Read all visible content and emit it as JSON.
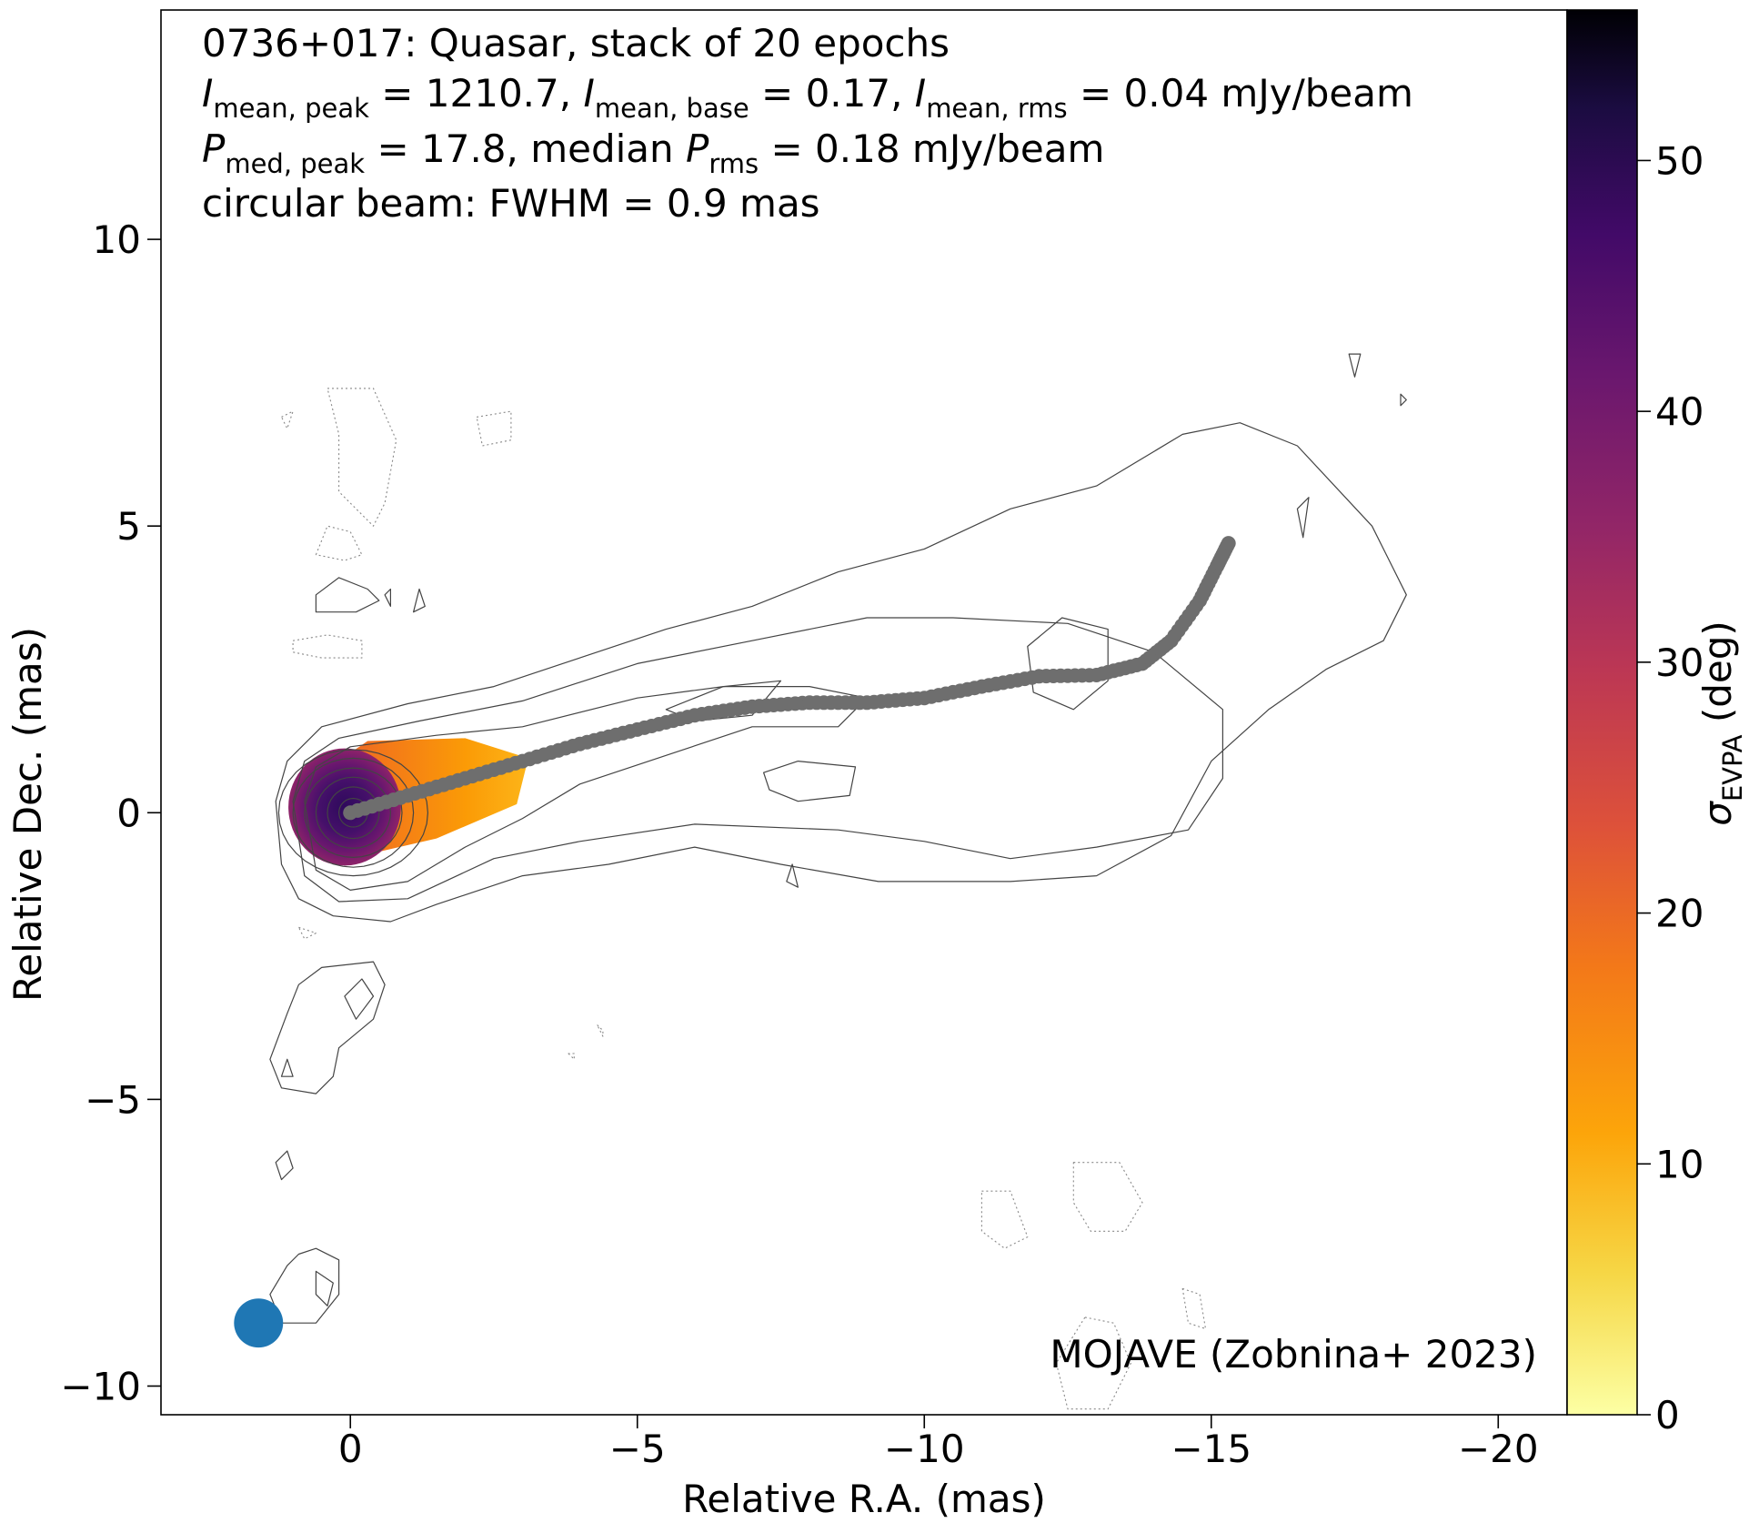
{
  "chart_data": {
    "type": "scatter",
    "title_lines": [
      "0736+017: Quasar, stack of 20 epochs",
      "circular beam: FWHM = 0.9 mas"
    ],
    "stats": {
      "i_mean_peak": "1210.7",
      "i_mean_base": "0.17",
      "i_mean_rms": "0.04",
      "p_med_peak": "17.8",
      "median_p_rms": "0.18",
      "unit": "mJy/beam",
      "sub_mean_peak": "mean, peak",
      "sub_mean_base": "mean, base",
      "sub_mean_rms": "mean, rms",
      "sub_med_peak": "med, peak",
      "sub_rms": "rms",
      "text_median": "median",
      "symbol_I": "I",
      "symbol_P": "P"
    },
    "xlabel": "Relative R.A. (mas)",
    "ylabel": "Relative Dec. (mas)",
    "xlim": [
      3.3,
      -21.2
    ],
    "ylim": [
      -10.5,
      14.0
    ],
    "xticks": [
      0,
      -5,
      -10,
      -15,
      -20
    ],
    "yticks": [
      -10,
      -5,
      0,
      5,
      10
    ],
    "xtick_labels": [
      "0",
      "−5",
      "−10",
      "−15",
      "−20"
    ],
    "ytick_labels": [
      "−10",
      "−5",
      "0",
      "5",
      "10"
    ],
    "colorbar": {
      "label_symbol": "σ",
      "label_sub": "EVPA",
      "label_unit": "(deg)",
      "range": [
        0,
        56
      ],
      "ticks": [
        0,
        10,
        20,
        30,
        40,
        50
      ],
      "tick_labels": [
        "0",
        "10",
        "20",
        "30",
        "40",
        "50"
      ],
      "colormap": "inferno_r"
    },
    "ridge_line": {
      "color": "#6e6e6e",
      "points": [
        [
          0.0,
          0.0
        ],
        [
          -1.0,
          0.3
        ],
        [
          -2.0,
          0.6
        ],
        [
          -3.0,
          0.9
        ],
        [
          -4.0,
          1.2
        ],
        [
          -5.0,
          1.45
        ],
        [
          -6.0,
          1.7
        ],
        [
          -7.0,
          1.85
        ],
        [
          -8.0,
          1.92
        ],
        [
          -9.0,
          1.92
        ],
        [
          -10.0,
          2.0
        ],
        [
          -11.0,
          2.2
        ],
        [
          -12.0,
          2.38
        ],
        [
          -13.0,
          2.4
        ],
        [
          -13.8,
          2.6
        ],
        [
          -14.3,
          3.0
        ],
        [
          -14.8,
          3.7
        ],
        [
          -15.1,
          4.3
        ],
        [
          -15.3,
          4.7
        ]
      ]
    },
    "beam": {
      "fwhm_mas": 0.9,
      "center": [
        1.6,
        -8.9
      ],
      "color": "#1f77b4"
    },
    "grid": false,
    "annotation": "MOJAVE (Zobnina+ 2023)",
    "annotation_position": "bottom-right"
  }
}
